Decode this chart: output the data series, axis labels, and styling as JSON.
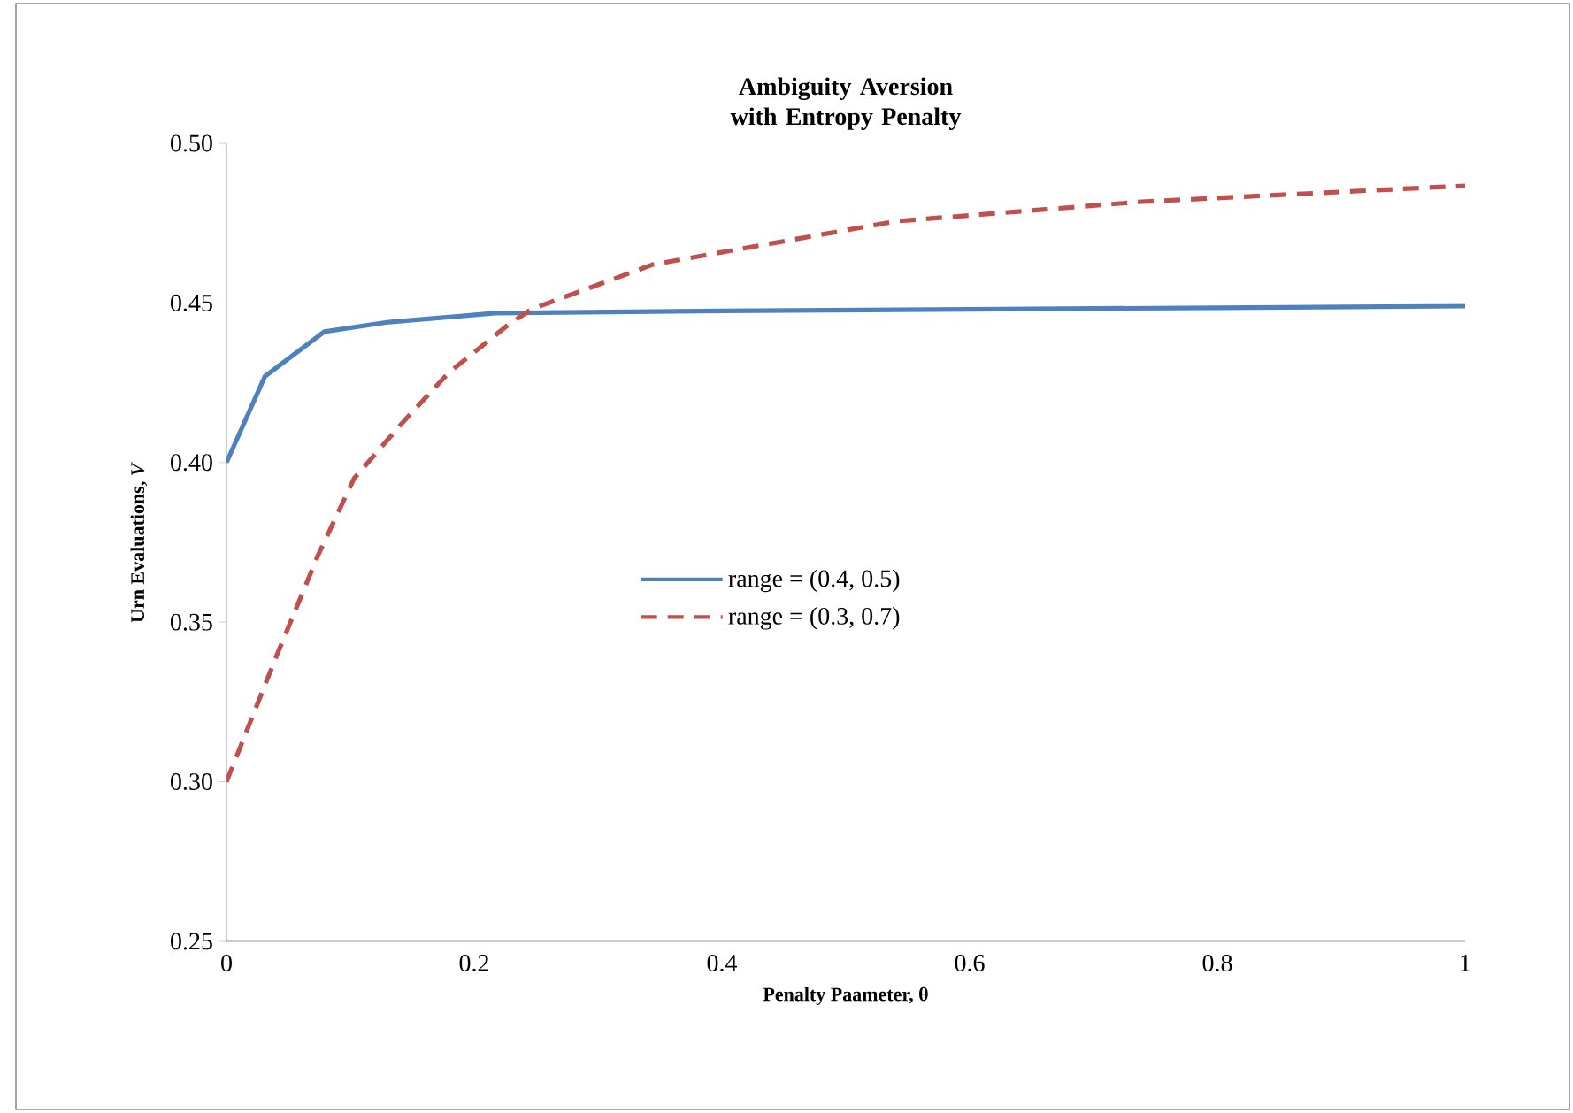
{
  "chart_data": {
    "type": "line",
    "title": "Ambiguity Aversion with Entropy Penalty",
    "xlabel": "Penalty Paameter, θ",
    "ylabel": "Urn Evaluations, *V*",
    "xlim": [
      0,
      1
    ],
    "ylim": [
      0.25,
      0.5
    ],
    "xticks": [
      0,
      0.2,
      0.4,
      0.6,
      0.8,
      1
    ],
    "yticks": [
      {
        "value": 0.25,
        "label": "0.25"
      },
      {
        "value": 0.3,
        "label": "0.30"
      },
      {
        "value": 0.35,
        "label": "0.35"
      },
      {
        "value": 0.4,
        "label": "0.40"
      },
      {
        "value": 0.45,
        "label": "0.45"
      },
      {
        "value": 0.5,
        "label": "0.50"
      }
    ],
    "grid": false,
    "legend": "center",
    "marker": "none",
    "series": [
      {
        "name": "range = (0.4, 0.5)",
        "color": "#4f81bd",
        "line_style": "solid",
        "x": [
          0,
          0.031,
          0.079,
          0.131,
          0.217,
          0.4,
          0.6,
          0.8,
          1
        ],
        "values": [
          0.4,
          0.427,
          0.441,
          0.444,
          0.4468,
          0.4475,
          0.448,
          0.4485,
          0.449
        ]
      },
      {
        "name": "range = (0.3, 0.7)",
        "color": "#c0504d",
        "line_style": "dashed",
        "x": [
          0,
          0.041,
          0.074,
          0.103,
          0.141,
          0.179,
          0.227,
          0.246,
          0.344,
          0.541,
          0.739,
          1
        ],
        "values": [
          0.3,
          0.34,
          0.371,
          0.395,
          0.412,
          0.428,
          0.443,
          0.448,
          0.462,
          0.4756,
          0.4817,
          0.4867
        ]
      }
    ]
  }
}
